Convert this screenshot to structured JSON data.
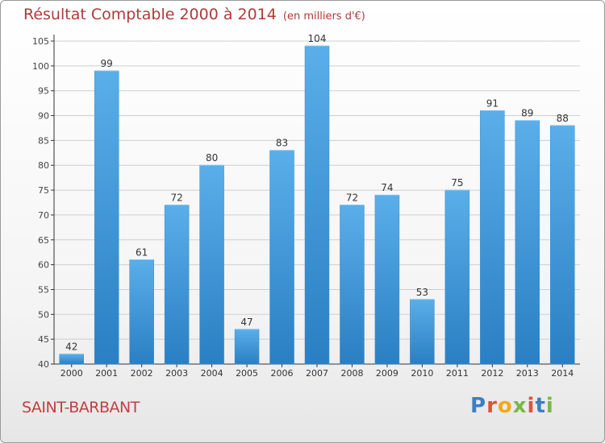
{
  "title": "Résultat Comptable 2000 à 2014",
  "subtitle": "(en milliers d'€)",
  "place": "SAINT-BARBANT",
  "logo": {
    "text": "Proxiti"
  },
  "colors": {
    "bar_top": "#5aaee9",
    "bar_bottom": "#2a7fc3",
    "title": "#b03a3a"
  },
  "chart_data": {
    "type": "bar",
    "title": "Résultat Comptable 2000 à 2014",
    "subtitle": "(en milliers d'€)",
    "xlabel": "",
    "ylabel": "",
    "categories": [
      "2000",
      "2001",
      "2002",
      "2003",
      "2004",
      "2005",
      "2006",
      "2007",
      "2008",
      "2009",
      "2010",
      "2011",
      "2012",
      "2013",
      "2014"
    ],
    "values": [
      42,
      99,
      61,
      72,
      80,
      47,
      83,
      104,
      72,
      74,
      53,
      75,
      91,
      89,
      88
    ],
    "ylim": [
      40,
      105
    ],
    "yticks": [
      40,
      45,
      50,
      55,
      60,
      65,
      70,
      75,
      80,
      85,
      90,
      95,
      100,
      105
    ],
    "grid": true,
    "legend": "none"
  }
}
